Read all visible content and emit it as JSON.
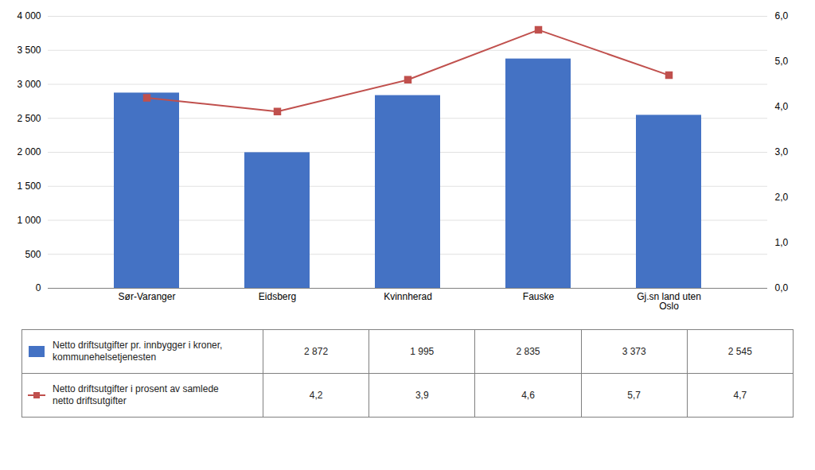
{
  "chart_data": {
    "type": "bar",
    "categories": [
      "Sør-Varanger",
      "Eidsberg",
      "Kvinnherad",
      "Fauske",
      "Gj.sn land uten\nOslo"
    ],
    "series": [
      {
        "name": "Netto driftsutgifter pr. innbygger i kroner,\nkommunehelsetjenesten",
        "type": "bar",
        "color": "#4472C4",
        "values": [
          2872,
          1995,
          2835,
          3373,
          2545
        ],
        "value_labels": [
          "2 872",
          "1 995",
          "2 835",
          "3 373",
          "2 545"
        ]
      },
      {
        "name": "Netto driftsutgifter i prosent av samlede\nnetto driftsutgifter",
        "type": "line",
        "axis": "y2",
        "color": "#C0504D",
        "marker": "square",
        "values": [
          4.2,
          3.9,
          4.6,
          5.7,
          4.7
        ],
        "value_labels": [
          "4,2",
          "3,9",
          "4,6",
          "5,7",
          "4,7"
        ]
      }
    ],
    "ylim": [
      0,
      4000
    ],
    "yticks": [
      0,
      500,
      {
        "value": 1000,
        "label": "1 000"
      },
      {
        "value": 1500,
        "label": "1 500"
      },
      {
        "value": 2000,
        "label": "2 000"
      },
      {
        "value": 2500,
        "label": "2 500"
      },
      {
        "value": 3000,
        "label": "3 000"
      },
      {
        "value": 3500,
        "label": "3 500"
      },
      {
        "value": 4000,
        "label": "4 000"
      }
    ],
    "y2lim": [
      0,
      6.0
    ],
    "y2ticks": [
      {
        "value": 0.0,
        "label": "0,0"
      },
      {
        "value": 1.0,
        "label": "1,0"
      },
      {
        "value": 2.0,
        "label": "2,0"
      },
      {
        "value": 3.0,
        "label": "3,0"
      },
      {
        "value": 4.0,
        "label": "4,0"
      },
      {
        "value": 5.0,
        "label": "5,0"
      },
      {
        "value": 6.0,
        "label": "6,0"
      }
    ],
    "grid": true,
    "legend": "bottom"
  }
}
